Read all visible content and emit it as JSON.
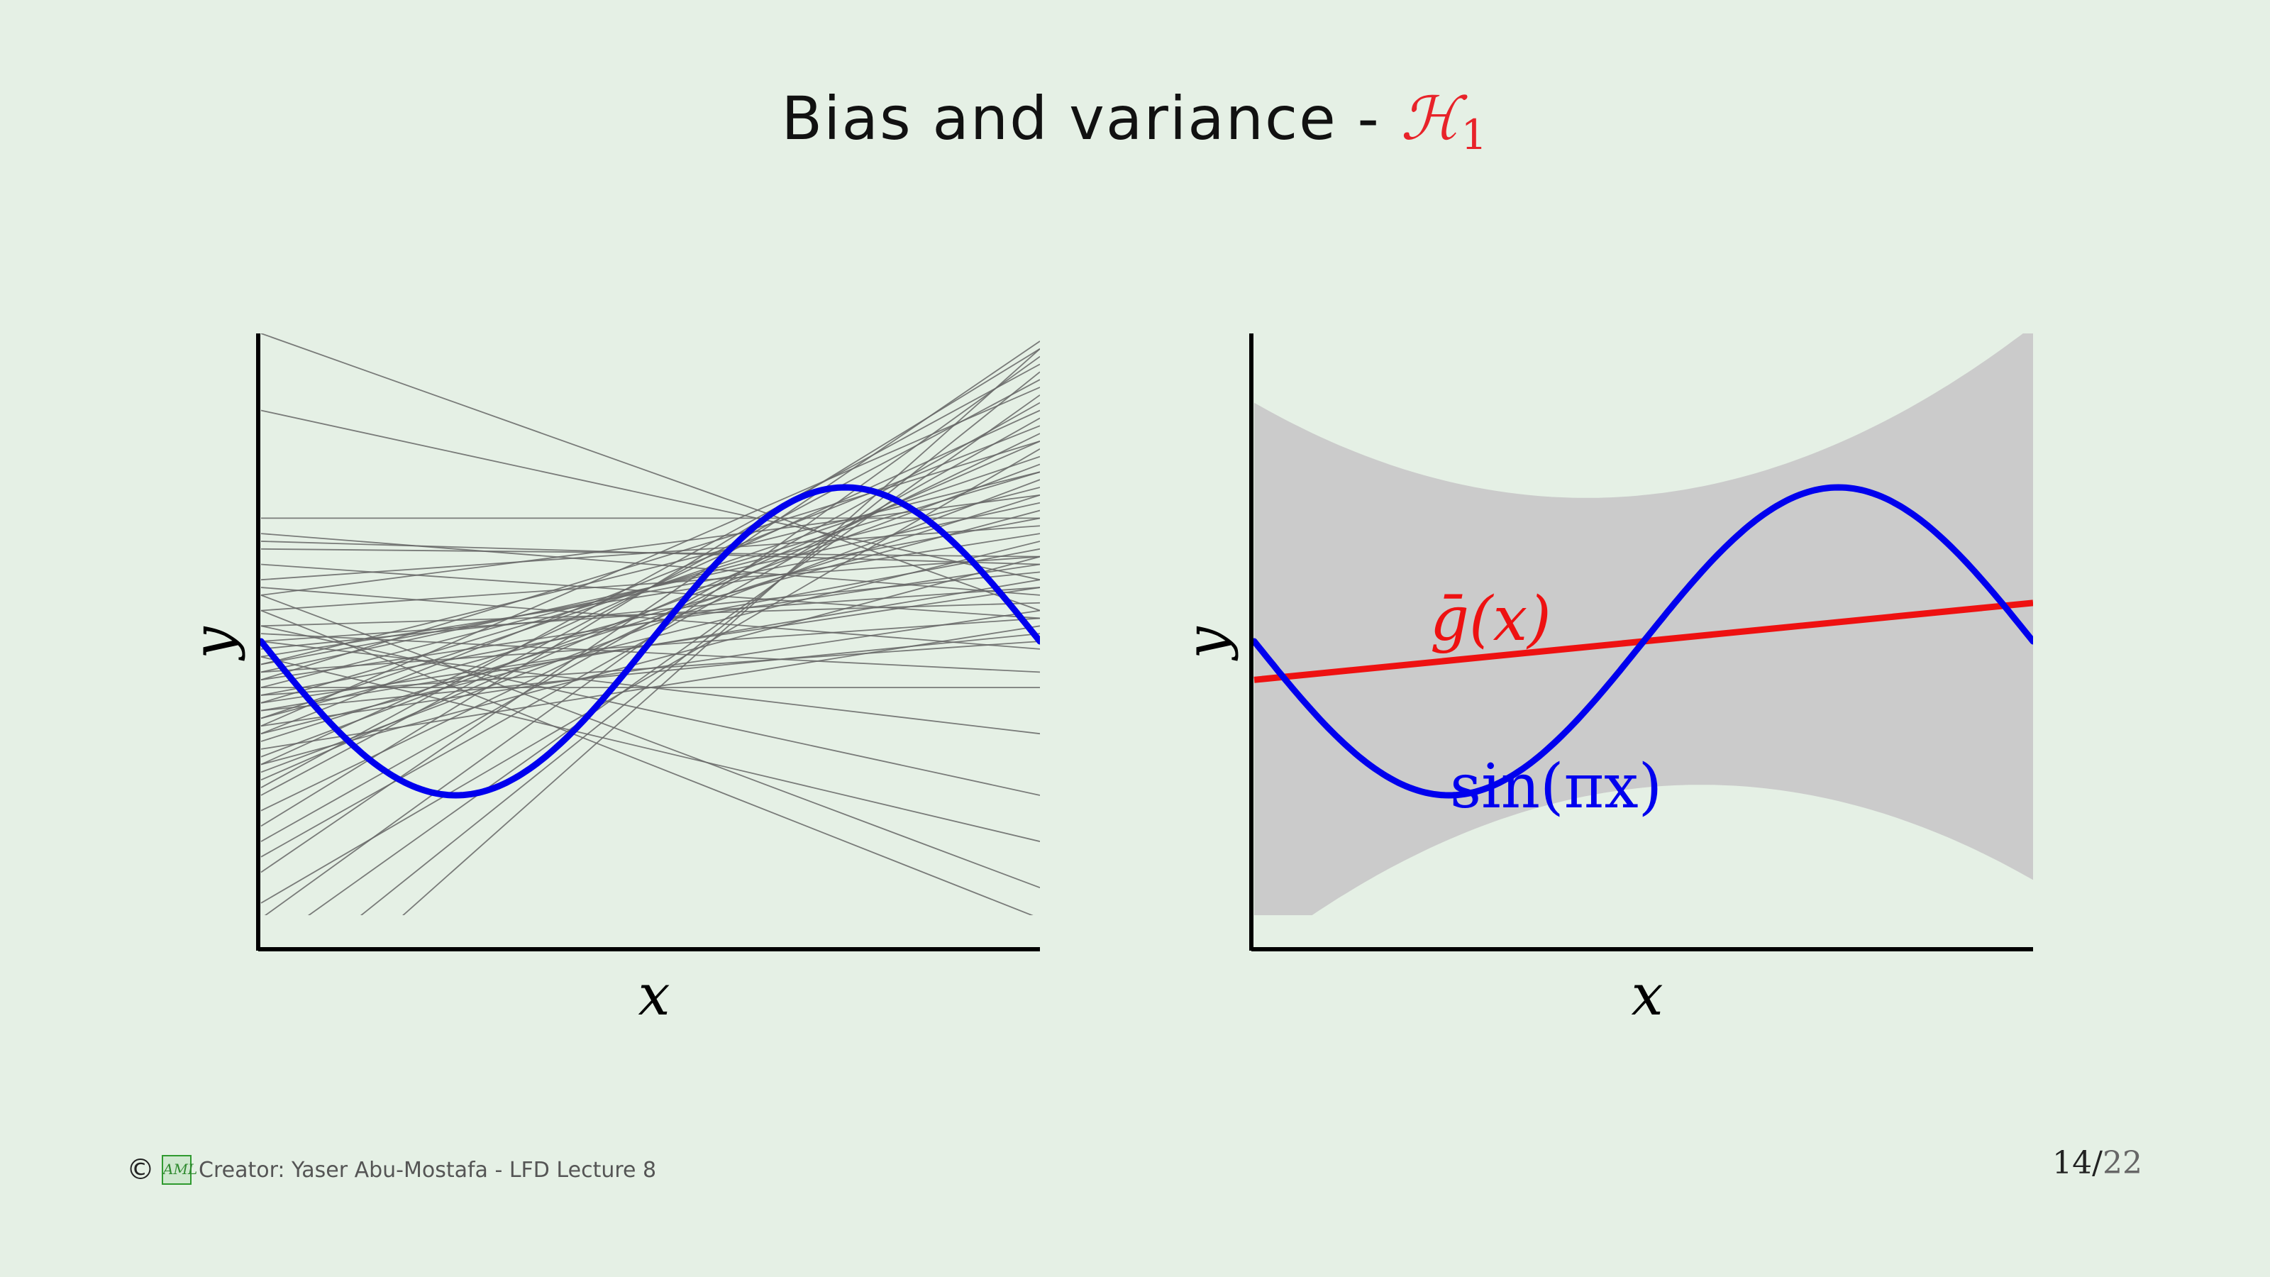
{
  "slide": {
    "title_prefix": "Bias and variance - ",
    "title_symbol": "ℋ",
    "title_symbol_sub": "1",
    "footer_text": "Creator: Yaser Abu-Mostafa - LFD Lecture 8",
    "footer_copyright": "©",
    "logo_text": "AML",
    "page_current": "14",
    "page_total": "22"
  },
  "colors": {
    "target": "#0000ee",
    "gbar": "#ee1111",
    "hypotheses": "#666666",
    "band": "#cbcbcb",
    "background": "#e5f0e5"
  },
  "chart_data": [
    {
      "type": "line",
      "xlabel": "x",
      "ylabel": "y",
      "xlim": [
        -1,
        1
      ],
      "ylim": [
        -2,
        2
      ],
      "grid": false,
      "series": [
        {
          "kind": "target",
          "function": "sin(pi*x)",
          "x_range": [
            -1,
            1
          ]
        },
        {
          "kind": "hypothesis_lines",
          "count": 60,
          "lines": [
            {
              "x": [
                -1,
                1
              ],
              "y": [
                -1.2,
                1.9
              ]
            },
            {
              "x": [
                -1,
                1
              ],
              "y": [
                -1.0,
                1.7
              ]
            },
            {
              "x": [
                -1,
                1
              ],
              "y": [
                -0.8,
                1.5
              ]
            },
            {
              "x": [
                -1,
                1
              ],
              "y": [
                -0.6,
                1.4
              ]
            },
            {
              "x": [
                -1,
                1
              ],
              "y": [
                -0.5,
                1.2
              ]
            },
            {
              "x": [
                -1,
                1
              ],
              "y": [
                -0.4,
                1.1
              ]
            },
            {
              "x": [
                -1,
                1
              ],
              "y": [
                -0.3,
                1.0
              ]
            },
            {
              "x": [
                -1,
                1
              ],
              "y": [
                -0.2,
                0.9
              ]
            },
            {
              "x": [
                -1,
                1
              ],
              "y": [
                -0.15,
                0.8
              ]
            },
            {
              "x": [
                -1,
                1
              ],
              "y": [
                -0.1,
                0.7
              ]
            },
            {
              "x": [
                -1,
                1
              ],
              "y": [
                -0.35,
                0.6
              ]
            },
            {
              "x": [
                -1,
                1
              ],
              "y": [
                -0.25,
                0.5
              ]
            },
            {
              "x": [
                -1,
                1
              ],
              "y": [
                -0.45,
                0.4
              ]
            },
            {
              "x": [
                -1,
                1
              ],
              "y": [
                -0.55,
                0.2
              ]
            },
            {
              "x": [
                -1,
                1
              ],
              "y": [
                -0.7,
                0.1
              ]
            },
            {
              "x": [
                -1,
                1
              ],
              "y": [
                -1.5,
                1.95
              ]
            },
            {
              "x": [
                -1,
                1
              ],
              "y": [
                -1.8,
                1.85
              ]
            },
            {
              "x": [
                -1,
                1
              ],
              "y": [
                -2.0,
                1.6
              ]
            },
            {
              "x": [
                -1,
                1
              ],
              "y": [
                -2.3,
                1.75
              ]
            },
            {
              "x": [
                -1,
                1
              ],
              "y": [
                -2.6,
                1.9
              ]
            },
            {
              "x": [
                -1,
                1
              ],
              "y": [
                -0.9,
                1.3
              ]
            },
            {
              "x": [
                -1,
                1
              ],
              "y": [
                -0.65,
                0.95
              ]
            },
            {
              "x": [
                -1,
                1
              ],
              "y": [
                -0.05,
                0.45
              ]
            },
            {
              "x": [
                -1,
                1
              ],
              "y": [
                0.0,
                0.35
              ]
            },
            {
              "x": [
                -1,
                1
              ],
              "y": [
                -0.2,
                0.15
              ]
            },
            {
              "x": [
                -1,
                1
              ],
              "y": [
                -0.3,
                -0.3
              ]
            },
            {
              "x": [
                -1,
                1
              ],
              "y": [
                0.8,
                0.8
              ]
            },
            {
              "x": [
                -1,
                1
              ],
              "y": [
                0.7,
                0.3
              ]
            },
            {
              "x": [
                -1,
                1
              ],
              "y": [
                0.65,
                0.5
              ]
            },
            {
              "x": [
                -1,
                1
              ],
              "y": [
                0.6,
                0.55
              ]
            },
            {
              "x": [
                -1,
                1
              ],
              "y": [
                0.4,
                0.75
              ]
            },
            {
              "x": [
                -1,
                1
              ],
              "y": [
                1.5,
                0.4
              ]
            },
            {
              "x": [
                -1,
                1
              ],
              "y": [
                2.0,
                0.2
              ]
            },
            {
              "x": [
                -1,
                1
              ],
              "y": [
                0.1,
                -1.0
              ]
            },
            {
              "x": [
                -1,
                1
              ],
              "y": [
                0.2,
                -1.8
              ]
            },
            {
              "x": [
                -1,
                1
              ],
              "y": [
                0.3,
                -1.6
              ]
            },
            {
              "x": [
                -1,
                1
              ],
              "y": [
                0.0,
                -0.6
              ]
            },
            {
              "x": [
                -1,
                1
              ],
              "y": [
                -0.1,
                -1.3
              ]
            },
            {
              "x": [
                -1,
                1
              ],
              "y": [
                -0.35,
                0.0
              ]
            },
            {
              "x": [
                -1,
                1
              ],
              "y": [
                -0.5,
                0.85
              ]
            },
            {
              "x": [
                -1,
                1
              ],
              "y": [
                -1.1,
                1.35
              ]
            },
            {
              "x": [
                -1,
                1
              ],
              "y": [
                -1.3,
                1.55
              ]
            },
            {
              "x": [
                -1,
                1
              ],
              "y": [
                -0.75,
                1.15
              ]
            },
            {
              "x": [
                -1,
                1
              ],
              "y": [
                -0.85,
                1.05
              ]
            },
            {
              "x": [
                -1,
                1
              ],
              "y": [
                -0.6,
                0.65
              ]
            },
            {
              "x": [
                -1,
                1
              ],
              "y": [
                -0.4,
                0.35
              ]
            },
            {
              "x": [
                -1,
                1
              ],
              "y": [
                0.2,
                0.55
              ]
            },
            {
              "x": [
                -1,
                1
              ],
              "y": [
                0.1,
                0.25
              ]
            },
            {
              "x": [
                -1,
                1
              ],
              "y": [
                -0.55,
                1.65
              ]
            },
            {
              "x": [
                -1,
                1
              ],
              "y": [
                -0.95,
                1.8
              ]
            },
            {
              "x": [
                -1,
                1
              ],
              "y": [
                -1.4,
                1.45
              ]
            },
            {
              "x": [
                -1,
                1
              ],
              "y": [
                -1.7,
                1.25
              ]
            },
            {
              "x": [
                -1,
                1
              ],
              "y": [
                -0.15,
                1.1
              ]
            },
            {
              "x": [
                -1,
                1
              ],
              "y": [
                0.3,
                0.95
              ]
            },
            {
              "x": [
                -1,
                1
              ],
              "y": [
                0.5,
                0.15
              ]
            },
            {
              "x": [
                -1,
                1
              ],
              "y": [
                -0.25,
                1.3
              ]
            },
            {
              "x": [
                -1,
                1
              ],
              "y": [
                -0.8,
                0.55
              ]
            },
            {
              "x": [
                -1,
                1
              ],
              "y": [
                0.05,
                -0.2
              ]
            },
            {
              "x": [
                -1,
                1
              ],
              "y": [
                0.35,
                -0.05
              ]
            },
            {
              "x": [
                -1,
                1
              ],
              "y": [
                -0.45,
                0.05
              ]
            }
          ]
        }
      ]
    },
    {
      "type": "area",
      "xlabel": "x",
      "ylabel": "y",
      "xlim": [
        -1,
        1
      ],
      "ylim": [
        -2,
        2
      ],
      "grid": false,
      "series": [
        {
          "kind": "variance_band",
          "center": "0.25*x",
          "halfwidth": "0.95 + 0.85*x^2"
        },
        {
          "kind": "gbar",
          "name": "ḡ(x)",
          "function": "0.25*x",
          "x_range": [
            -1,
            1
          ]
        },
        {
          "kind": "target",
          "name": "sin(πx)",
          "function": "sin(pi*x)",
          "x_range": [
            -1,
            1
          ]
        }
      ],
      "annotations": [
        {
          "text": "ḡ(x)",
          "color": "#ee1111",
          "at": [
            -0.51,
            0.05
          ]
        },
        {
          "text": "sin(πx)",
          "color": "#0000ee",
          "at": [
            -0.5,
            -1.05
          ]
        }
      ]
    }
  ]
}
